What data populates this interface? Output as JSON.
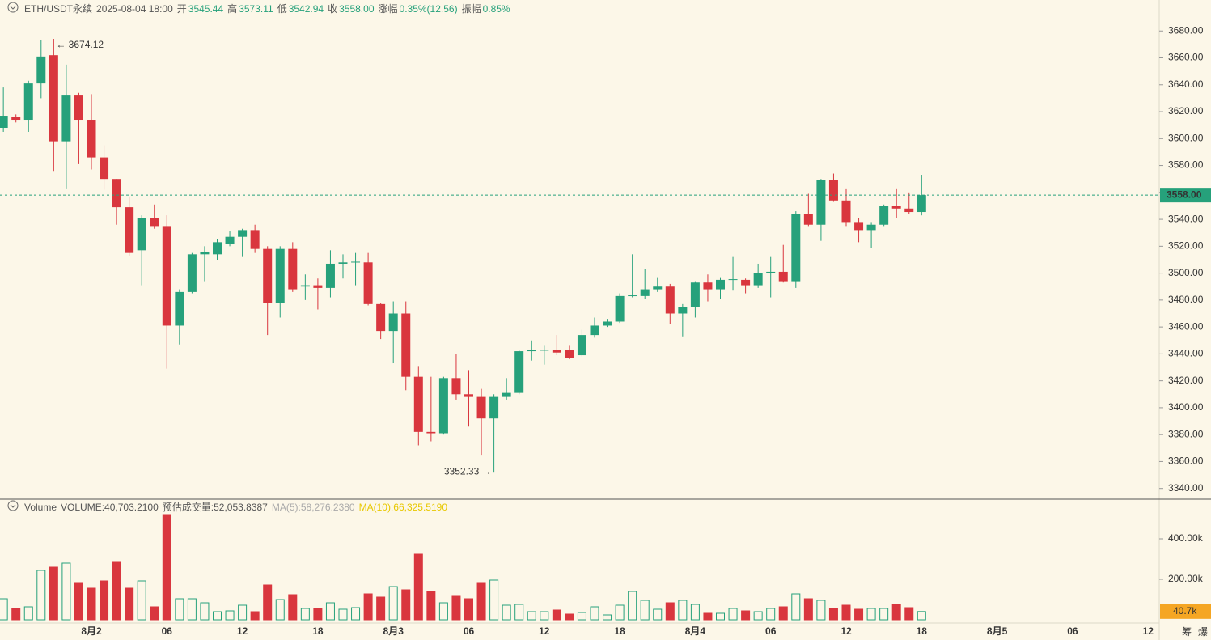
{
  "chart_data": {
    "type": "candlestick",
    "header": {
      "symbol": "ETH/USDT永续",
      "time": "2025-08-04 18:00",
      "fields": [
        {
          "label": "开",
          "value": "3545.44"
        },
        {
          "label": "高",
          "value": "3573.11"
        },
        {
          "label": "低",
          "value": "3542.94"
        },
        {
          "label": "收",
          "value": "3558.00"
        },
        {
          "label": "涨幅",
          "value": "0.35%(12.56)"
        },
        {
          "label": "振幅",
          "value": "0.85%"
        }
      ]
    },
    "categories": [
      null,
      null,
      null,
      null,
      null,
      null,
      null,
      "8月2",
      null,
      null,
      null,
      null,
      null,
      "06",
      null,
      null,
      null,
      null,
      null,
      "12",
      null,
      null,
      null,
      null,
      null,
      "18",
      null,
      null,
      null,
      null,
      null,
      "8月3",
      null,
      null,
      null,
      null,
      null,
      "06",
      null,
      null,
      null,
      null,
      null,
      "12",
      null,
      null,
      null,
      null,
      null,
      "18",
      null,
      null,
      null,
      null,
      null,
      "8月4",
      null,
      null,
      null,
      null,
      null,
      "06",
      null,
      null,
      null,
      null,
      null,
      "12",
      null,
      null,
      null,
      null,
      null,
      "18"
    ],
    "future_categories": [
      "8月5",
      "06",
      "12"
    ],
    "open": [
      3608,
      3616,
      3614,
      3641,
      3662,
      3598,
      3632,
      3614,
      3586,
      3570,
      3549,
      3517,
      3541,
      3535,
      3461,
      3486,
      3514,
      3514,
      3522,
      3527,
      3532,
      3518,
      3478,
      3518,
      3490,
      3491,
      3489,
      3507,
      3508,
      3508,
      3477,
      3457,
      3470,
      3423,
      3382,
      3381,
      3422,
      3410,
      3408,
      3392,
      3408,
      3411,
      3442,
      3443,
      3443,
      3443,
      3439,
      3454,
      3461,
      3464,
      3483,
      3483,
      3488,
      3490,
      3470,
      3475,
      3493,
      3488,
      3495,
      3495,
      3491,
      3500,
      3501,
      3494,
      3544,
      3536,
      3569,
      3554,
      3538,
      3532,
      3536,
      3550,
      3548,
      3545.44
    ],
    "high": [
      3638,
      3618,
      3643,
      3673,
      3674.12,
      3655,
      3634,
      3633,
      3595,
      3570,
      3557,
      3543,
      3551,
      3543,
      3488,
      3515,
      3520,
      3525,
      3531,
      3533,
      3536,
      3520,
      3520,
      3523,
      3499,
      3496,
      3517,
      3514,
      3515,
      3515,
      3478,
      3479,
      3479,
      3431,
      3423,
      3423,
      3440,
      3428,
      3414,
      3410,
      3422,
      3443,
      3450,
      3446,
      3454,
      3446,
      3458,
      3467,
      3466,
      3485,
      3514,
      3503,
      3497,
      3492,
      3477,
      3494,
      3499,
      3497,
      3512,
      3496,
      3507,
      3512,
      3521,
      3546,
      3559,
      3570,
      3574,
      3563,
      3541,
      3538,
      3551,
      3563,
      3560,
      3573.11
    ],
    "low": [
      3605,
      3612,
      3605,
      3630,
      3576,
      3563,
      3581,
      3577,
      3562,
      3536,
      3513,
      3491,
      3533,
      3429,
      3447,
      3485,
      3494,
      3510,
      3520,
      3512,
      3515,
      3454,
      3467,
      3486,
      3480,
      3473,
      3482,
      3496,
      3491,
      3476,
      3451,
      3433,
      3413,
      3372,
      3375,
      3380,
      3406,
      3386,
      3365,
      3352.33,
      3406,
      3410,
      3435,
      3432,
      3439,
      3436,
      3438,
      3452,
      3460,
      3463,
      3482,
      3481,
      3486,
      3462,
      3453,
      3467,
      3479,
      3481,
      3487,
      3485,
      3489,
      3482,
      3493,
      3489,
      3535,
      3524,
      3553,
      3535,
      3523,
      3519,
      3535,
      3541,
      3544,
      3542.94
    ],
    "close": [
      3617,
      3614,
      3641,
      3661,
      3598,
      3632,
      3614,
      3586,
      3570,
      3549,
      3515,
      3541,
      3535,
      3461,
      3486,
      3514,
      3516,
      3523,
      3527,
      3532,
      3518,
      3478,
      3518,
      3488,
      3491,
      3489,
      3507,
      3508,
      3508.5,
      3477,
      3457,
      3470,
      3423,
      3382,
      3381,
      3422,
      3410,
      3408,
      3392,
      3408,
      3411,
      3442,
      3443,
      3443,
      3441,
      3437,
      3454,
      3461,
      3464,
      3483,
      3483.5,
      3488,
      3490,
      3470,
      3475,
      3493,
      3488,
      3495,
      3495.5,
      3491,
      3500,
      3501,
      3494,
      3544,
      3536,
      3569,
      3554,
      3538,
      3532,
      3536,
      3550,
      3548,
      3545.44,
      3558
    ],
    "up_color": "#26a17b",
    "down_color": "#d9363e",
    "ylim": [
      3332,
      3703
    ],
    "yticks": [
      {
        "value": 3340,
        "label": "3340.00"
      },
      {
        "value": 3360,
        "label": "3360.00"
      },
      {
        "value": 3380,
        "label": "3380.00"
      },
      {
        "value": 3400,
        "label": "3400.00"
      },
      {
        "value": 3420,
        "label": "3420.00"
      },
      {
        "value": 3440,
        "label": "3440.00"
      },
      {
        "value": 3460,
        "label": "3460.00"
      },
      {
        "value": 3480,
        "label": "3480.00"
      },
      {
        "value": 3500,
        "label": "3500.00"
      },
      {
        "value": 3520,
        "label": "3520.00"
      },
      {
        "value": 3540,
        "label": "3540.00"
      },
      {
        "value": 3560,
        "label": "3560.00"
      },
      {
        "value": 3580,
        "label": "3580.00"
      },
      {
        "value": 3600,
        "label": "3600.00"
      },
      {
        "value": 3620,
        "label": "3620.00"
      },
      {
        "value": 3640,
        "label": "3640.00"
      },
      {
        "value": 3660,
        "label": "3660.00"
      },
      {
        "value": 3680,
        "label": "3680.00"
      }
    ],
    "last_price": {
      "value": 3558,
      "label": "3558.00"
    },
    "annotations": [
      {
        "text": "← 3674.12"
      },
      {
        "text": "3352.33 →"
      }
    ],
    "volume": {
      "title": "Volume",
      "items": [
        {
          "text": "VOLUME:40,703.2100",
          "color": "#555555"
        },
        {
          "text": "预估成交量:52,053.8387",
          "color": "#555555"
        },
        {
          "text": "MA(5):58,276.2380",
          "color": "#aaaaaa"
        },
        {
          "text": "MA(10):66,325.5190",
          "color": "#e8c800"
        }
      ],
      "values": [
        104000,
        56000,
        64000,
        244000,
        260000,
        280000,
        184000,
        156000,
        192000,
        288000,
        156000,
        192000,
        64000,
        520000,
        104000,
        104000,
        84000,
        40000,
        44000,
        72000,
        40000,
        172000,
        100000,
        124000,
        56000,
        56000,
        84000,
        52000,
        60000,
        128000,
        112000,
        164000,
        148000,
        324000,
        140000,
        84000,
        116000,
        104000,
        184000,
        196000,
        72000,
        76000,
        40000,
        40000,
        48000,
        28000,
        36000,
        64000,
        24000,
        72000,
        140000,
        96000,
        52000,
        84000,
        96000,
        76000,
        32000,
        32000,
        56000,
        44000,
        40000,
        56000,
        64000,
        128000,
        104000,
        96000,
        56000,
        72000,
        52000,
        56000,
        56000,
        76000,
        60000,
        40703.21
      ],
      "ylim": [
        0,
        584000
      ],
      "yticks": [
        {
          "value": 200000,
          "label": "200.00k"
        },
        {
          "value": 400000,
          "label": "400.00k"
        }
      ],
      "last": {
        "value": 40703.21,
        "label": "40.7k"
      },
      "last_color": "#f5a623"
    },
    "toolbar": [
      "筹",
      "爆"
    ]
  }
}
